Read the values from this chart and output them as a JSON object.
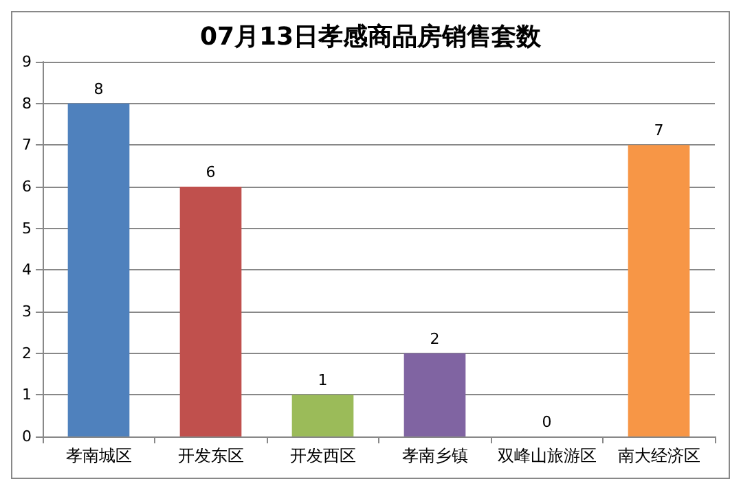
{
  "chart_data": {
    "type": "bar",
    "title": "07月13日孝感商品房销售套数",
    "categories": [
      "孝南城区",
      "开发东区",
      "开发西区",
      "孝南乡镇",
      "双峰山旅游区",
      "南大经济区"
    ],
    "values": [
      8,
      6,
      1,
      2,
      0,
      7
    ],
    "colors": [
      "#4f81bd",
      "#c0504d",
      "#9bbb59",
      "#8064a2",
      "#4bacc6",
      "#f79646"
    ],
    "ylim": [
      0,
      9
    ],
    "yticks": [
      0,
      1,
      2,
      3,
      4,
      5,
      6,
      7,
      8,
      9
    ],
    "grid": "y",
    "data_labels": true
  }
}
